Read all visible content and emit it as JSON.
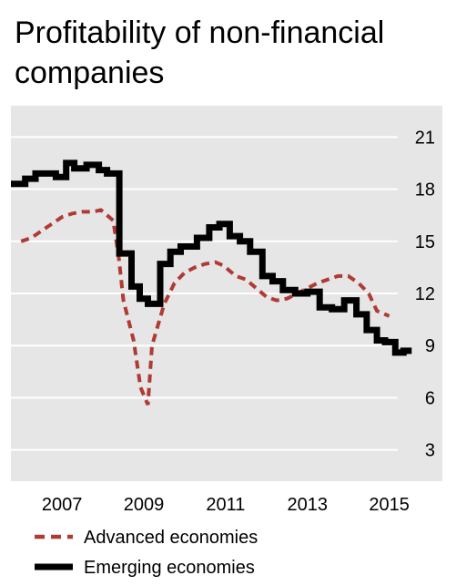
{
  "chart_data": {
    "type": "line",
    "title": "Profitability of non-financial companies",
    "xlabel": "",
    "ylabel": "",
    "x_ticks": [
      "2007",
      "2009",
      "2011",
      "2013",
      "2015"
    ],
    "y_ticks": [
      3,
      6,
      9,
      12,
      15,
      18,
      21
    ],
    "xlim": [
      2005.75,
      2016.3
    ],
    "ylim": [
      1.2,
      22.8
    ],
    "grid": "horizontal",
    "legend_position": "bottom-left",
    "colors": {
      "advanced": "#b03a35",
      "emerging": "#000000",
      "plot_bg": "#e6e6e6",
      "grid": "#ffffff"
    },
    "series": [
      {
        "name": "Advanced economies",
        "style": "dashed",
        "points": [
          [
            2006.0,
            15.0
          ],
          [
            2006.25,
            15.2
          ],
          [
            2006.5,
            15.6
          ],
          [
            2006.75,
            16.0
          ],
          [
            2007.0,
            16.4
          ],
          [
            2007.25,
            16.6
          ],
          [
            2007.5,
            16.7
          ],
          [
            2007.75,
            16.7
          ],
          [
            2007.95,
            16.8
          ],
          [
            2008.25,
            16.2
          ],
          [
            2008.38,
            14.2
          ],
          [
            2008.5,
            11.6
          ],
          [
            2008.75,
            9.3
          ],
          [
            2008.92,
            6.6
          ],
          [
            2009.1,
            5.6
          ],
          [
            2009.2,
            9.0
          ],
          [
            2009.5,
            11.4
          ],
          [
            2009.75,
            12.6
          ],
          [
            2010.0,
            13.2
          ],
          [
            2010.25,
            13.5
          ],
          [
            2010.5,
            13.7
          ],
          [
            2010.75,
            13.8
          ],
          [
            2010.95,
            13.6
          ],
          [
            2011.25,
            13.0
          ],
          [
            2011.5,
            12.8
          ],
          [
            2011.75,
            12.3
          ],
          [
            2012.0,
            11.8
          ],
          [
            2012.25,
            11.6
          ],
          [
            2012.5,
            11.7
          ],
          [
            2012.75,
            12.0
          ],
          [
            2013.0,
            12.3
          ],
          [
            2013.25,
            12.6
          ],
          [
            2013.5,
            12.8
          ],
          [
            2013.75,
            13.0
          ],
          [
            2014.0,
            13.0
          ],
          [
            2014.25,
            12.6
          ],
          [
            2014.5,
            12.0
          ],
          [
            2014.7,
            11.0
          ],
          [
            2015.0,
            10.7
          ]
        ]
      },
      {
        "name": "Emerging economies",
        "style": "solid",
        "points": [
          [
            2005.75,
            18.3
          ],
          [
            2006.1,
            18.3
          ],
          [
            2006.1,
            18.6
          ],
          [
            2006.35,
            18.6
          ],
          [
            2006.35,
            18.9
          ],
          [
            2006.85,
            18.9
          ],
          [
            2006.85,
            18.7
          ],
          [
            2007.1,
            18.7
          ],
          [
            2007.1,
            19.5
          ],
          [
            2007.3,
            19.5
          ],
          [
            2007.3,
            19.2
          ],
          [
            2007.6,
            19.2
          ],
          [
            2007.6,
            19.4
          ],
          [
            2007.9,
            19.4
          ],
          [
            2007.9,
            19.1
          ],
          [
            2008.1,
            19.1
          ],
          [
            2008.1,
            18.9
          ],
          [
            2008.4,
            18.9
          ],
          [
            2008.4,
            14.3
          ],
          [
            2008.7,
            14.3
          ],
          [
            2008.7,
            12.4
          ],
          [
            2008.9,
            12.4
          ],
          [
            2008.9,
            11.7
          ],
          [
            2009.1,
            11.7
          ],
          [
            2009.1,
            11.4
          ],
          [
            2009.4,
            11.4
          ],
          [
            2009.4,
            13.7
          ],
          [
            2009.65,
            13.7
          ],
          [
            2009.65,
            14.4
          ],
          [
            2009.9,
            14.4
          ],
          [
            2009.9,
            14.7
          ],
          [
            2010.3,
            14.7
          ],
          [
            2010.3,
            15.2
          ],
          [
            2010.6,
            15.2
          ],
          [
            2010.6,
            15.8
          ],
          [
            2010.85,
            15.8
          ],
          [
            2010.85,
            16.0
          ],
          [
            2011.1,
            16.0
          ],
          [
            2011.1,
            15.3
          ],
          [
            2011.35,
            15.3
          ],
          [
            2011.35,
            15.0
          ],
          [
            2011.6,
            15.0
          ],
          [
            2011.6,
            14.4
          ],
          [
            2011.9,
            14.4
          ],
          [
            2011.9,
            13.0
          ],
          [
            2012.15,
            13.0
          ],
          [
            2012.15,
            12.7
          ],
          [
            2012.4,
            12.7
          ],
          [
            2012.4,
            12.2
          ],
          [
            2012.7,
            12.2
          ],
          [
            2012.7,
            12.0
          ],
          [
            2013.0,
            12.0
          ],
          [
            2013.0,
            12.1
          ],
          [
            2013.3,
            12.1
          ],
          [
            2013.3,
            11.2
          ],
          [
            2013.6,
            11.2
          ],
          [
            2013.6,
            11.1
          ],
          [
            2013.9,
            11.1
          ],
          [
            2013.9,
            11.6
          ],
          [
            2014.2,
            11.6
          ],
          [
            2014.2,
            10.8
          ],
          [
            2014.45,
            10.8
          ],
          [
            2014.45,
            9.9
          ],
          [
            2014.7,
            9.9
          ],
          [
            2014.7,
            9.3
          ],
          [
            2014.9,
            9.3
          ],
          [
            2014.9,
            9.2
          ],
          [
            2015.15,
            9.2
          ],
          [
            2015.15,
            8.6
          ],
          [
            2015.35,
            8.6
          ],
          [
            2015.35,
            8.7
          ],
          [
            2015.55,
            8.7
          ]
        ]
      }
    ]
  }
}
